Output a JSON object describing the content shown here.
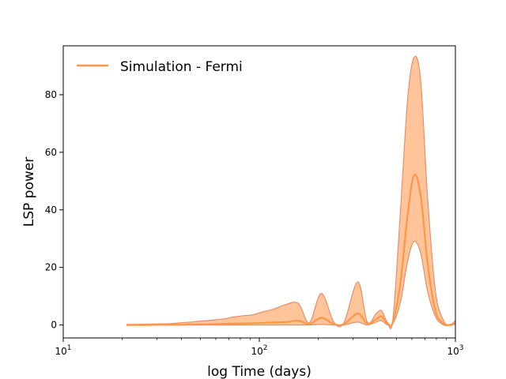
{
  "chart_data": {
    "type": "area",
    "xlabel": "log Time (days)",
    "ylabel": "LSP power",
    "xscale": "log",
    "xlim": [
      10,
      1000
    ],
    "ylim": [
      -4.5,
      97
    ],
    "grid": false,
    "legend": {
      "placement": "top-left",
      "entries": [
        "Simulation - Fermi"
      ]
    },
    "x_ticks": [
      {
        "value": 10,
        "base": "10",
        "exp": "1"
      },
      {
        "value": 100,
        "base": "10",
        "exp": "2"
      },
      {
        "value": 1000,
        "base": "10",
        "exp": "3"
      }
    ],
    "y_ticks": [
      0,
      20,
      40,
      60,
      80
    ],
    "colors": {
      "line": "#ff9646",
      "band_fill": "#ffc49a",
      "band_edge": "#e5906a"
    },
    "series": [
      {
        "name": "Simulation - Fermi",
        "x": [
          21,
          27,
          31,
          36,
          40,
          44,
          49,
          54,
          60,
          67,
          74,
          82,
          92,
          103,
          118,
          135,
          158,
          180,
          207,
          240,
          270,
          318,
          355,
          395,
          420,
          450,
          480,
          525,
          570,
          615,
          665,
          720,
          790,
          870,
          940,
          1000
        ],
        "mean": [
          0,
          0,
          0.1,
          0.1,
          0.1,
          0.2,
          0.2,
          0.2,
          0.3,
          0.4,
          0.5,
          0.5,
          0.6,
          0.7,
          0.9,
          1,
          1.5,
          0.3,
          2.5,
          0.3,
          0.3,
          4,
          0.5,
          2,
          3,
          0.5,
          1,
          15,
          38,
          52,
          45,
          22,
          5,
          0.5,
          0,
          0.5
        ],
        "lower": [
          0,
          0,
          0,
          0,
          0,
          0,
          0,
          0,
          0,
          0,
          0,
          0,
          0,
          0,
          0,
          0,
          0,
          0,
          0.2,
          0,
          0,
          1,
          0,
          1,
          1.5,
          0,
          0.5,
          8,
          22,
          29,
          25,
          12,
          3,
          0,
          0,
          0.3
        ],
        "upper": [
          0.2,
          0.3,
          0.4,
          0.5,
          0.8,
          1,
          1.3,
          1.5,
          1.8,
          2.2,
          2.8,
          3.2,
          3.5,
          4.5,
          5.5,
          7,
          7.5,
          0.8,
          11,
          1,
          0.8,
          15,
          1,
          4,
          5,
          1,
          2,
          40,
          78,
          93,
          85,
          45,
          12,
          1.5,
          0.2,
          1.5
        ]
      }
    ]
  }
}
